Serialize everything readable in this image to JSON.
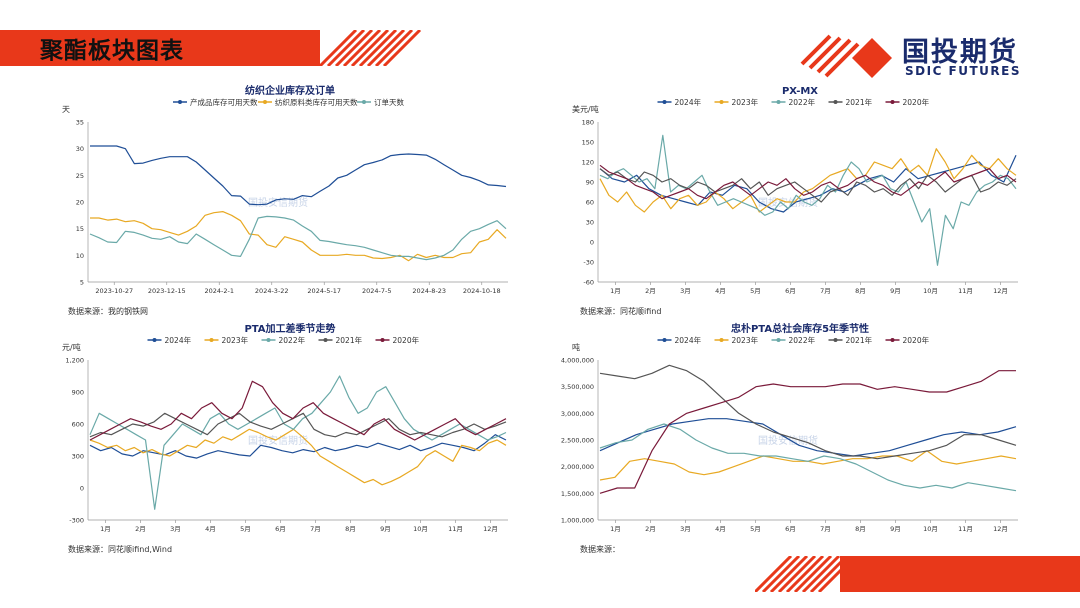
{
  "header": {
    "title": "聚酯板块图表"
  },
  "logo": {
    "cn": "国投期货",
    "en": "SDIC FUTURES",
    "watermark": "国投安信期货"
  },
  "colors": {
    "accent": "#e8381a",
    "brand": "#1a2b6c"
  },
  "sources": {
    "c1": "数据来源：我的钢铁网",
    "c2": "数据来源：同花顺ifind",
    "c3": "数据来源：同花顺ifind,Wind",
    "c4": "数据来源："
  },
  "chart_data": [
    {
      "id": "c1",
      "type": "line",
      "title": "纺织企业库存及订单",
      "ylabel": "天",
      "ylim": [
        5,
        35
      ],
      "yticks": [
        5,
        10,
        15,
        20,
        25,
        30,
        35
      ],
      "xticks": [
        "2023-10-27",
        "2023-12-15",
        "2024-2-1",
        "2024-3-22",
        "2024-5-17",
        "2024-7-5",
        "2024-8-23",
        "2024-10-18"
      ],
      "series": [
        {
          "name": "产成品库存可用天数",
          "color": "#1f4e96",
          "values": [
            30.5,
            30.5,
            30.5,
            30.5,
            30,
            27.2,
            27.3,
            27.8,
            28.2,
            28.5,
            28.5,
            28.5,
            27.5,
            26,
            24.5,
            23,
            21.2,
            21.1,
            19.6,
            19.5,
            19.6,
            20.4,
            20.6,
            20.5,
            21.2,
            21,
            22,
            23,
            24.5,
            25,
            26,
            27,
            27.4,
            27.9,
            28.7,
            28.9,
            29,
            28.9,
            28.8,
            28,
            27,
            26,
            25,
            24.6,
            24,
            23.2,
            23.1,
            22.9
          ]
        },
        {
          "name": "纺织原料类库存可用天数",
          "color": "#e8a923",
          "values": [
            17,
            17,
            16.6,
            16.8,
            16.3,
            16.5,
            16,
            15,
            14.8,
            14.3,
            13.8,
            14.5,
            15.5,
            17.5,
            18,
            18.2,
            17.5,
            16.5,
            14,
            13.8,
            12,
            11.5,
            13.5,
            13,
            12.5,
            11,
            10,
            10,
            10,
            10.2,
            10,
            10,
            9.5,
            9.4,
            9.6,
            10,
            9,
            10.2,
            9.6,
            10,
            9.6,
            9.6,
            10.3,
            10.5,
            12.5,
            13,
            14.8,
            13.2
          ]
        },
        {
          "name": "订单天数",
          "color": "#6aa9a8",
          "values": [
            14,
            13.3,
            12.5,
            12.4,
            14.5,
            14.3,
            13.8,
            13.2,
            13,
            13.5,
            12.5,
            12.2,
            14,
            13,
            12,
            11,
            10,
            9.8,
            13,
            17,
            17.3,
            17.2,
            17,
            16.6,
            15.5,
            14.5,
            12.8,
            12.6,
            12.3,
            12,
            11.8,
            11.5,
            11,
            10.5,
            10,
            9.8,
            9.8,
            9.5,
            9.2,
            9.5,
            10,
            11,
            13,
            14.5,
            15,
            15.8,
            16.5,
            15
          ]
        }
      ]
    },
    {
      "id": "c2",
      "type": "line",
      "title": "PX-MX",
      "ylabel": "美元/吨",
      "ylim": [
        -60,
        180
      ],
      "yticks": [
        -60,
        -30,
        0,
        30,
        60,
        90,
        120,
        150,
        180
      ],
      "xticks": [
        "1月",
        "2月",
        "3月",
        "4月",
        "5月",
        "6月",
        "7月",
        "8月",
        "9月",
        "10月",
        "11月",
        "12月"
      ],
      "series": [
        {
          "name": "2024年",
          "color": "#1f4e96",
          "values": [
            110,
            95,
            90,
            100,
            80,
            70,
            65,
            60,
            55,
            75,
            70,
            85,
            80,
            60,
            50,
            45,
            60,
            65,
            70,
            80,
            75,
            85,
            95,
            100,
            90,
            110,
            95,
            100,
            105,
            110,
            115,
            120,
            100,
            90,
            130
          ]
        },
        {
          "name": "2023年",
          "color": "#e8a923",
          "values": [
            95,
            70,
            60,
            75,
            55,
            45,
            60,
            70,
            50,
            65,
            70,
            55,
            60,
            75,
            65,
            50,
            60,
            70,
            45,
            55,
            65,
            60,
            60,
            75,
            80,
            90,
            100,
            105,
            110,
            95,
            100,
            120,
            115,
            110,
            125,
            105,
            115,
            100,
            140,
            120,
            95,
            110,
            130,
            115,
            110,
            125,
            110,
            100
          ]
        },
        {
          "name": "2022年",
          "color": "#6aa9a8",
          "values": [
            100,
            95,
            105,
            110,
            100,
            90,
            95,
            80,
            160,
            75,
            85,
            80,
            90,
            100,
            75,
            55,
            60,
            65,
            60,
            55,
            50,
            40,
            45,
            60,
            50,
            70,
            60,
            55,
            65,
            85,
            75,
            100,
            120,
            110,
            90,
            95,
            100,
            80,
            75,
            90,
            60,
            30,
            50,
            -35,
            40,
            20,
            60,
            55,
            75,
            85,
            90,
            100,
            95,
            80
          ]
        },
        {
          "name": "2021年",
          "color": "#555555",
          "values": [
            110,
            100,
            105,
            95,
            90,
            105,
            100,
            90,
            95,
            85,
            80,
            90,
            85,
            75,
            80,
            85,
            95,
            80,
            90,
            70,
            80,
            85,
            90,
            80,
            70,
            60,
            75,
            80,
            70,
            90,
            85,
            75,
            80,
            70,
            85,
            95,
            80,
            100,
            90,
            75,
            85,
            95,
            100,
            75,
            80,
            90,
            85,
            95
          ]
        },
        {
          "name": "2020年",
          "color": "#7a1a3a",
          "values": [
            115,
            105,
            100,
            95,
            85,
            80,
            75,
            65,
            70,
            75,
            80,
            70,
            65,
            75,
            85,
            90,
            80,
            70,
            80,
            90,
            85,
            95,
            80,
            70,
            75,
            85,
            90,
            80,
            85,
            95,
            100,
            90,
            85,
            75,
            70,
            80,
            90,
            85,
            95,
            105,
            90,
            95,
            100,
            105,
            110,
            95,
            100,
            90
          ]
        }
      ]
    },
    {
      "id": "c3",
      "type": "line",
      "title": "PTA加工差季节走势",
      "ylabel": "元/吨",
      "ylim": [
        -300,
        1200
      ],
      "yticks": [
        -300,
        0,
        300,
        600,
        900,
        1200
      ],
      "yticklabels": [
        "-300",
        "0",
        "300",
        "600",
        "900",
        "1,200"
      ],
      "xticks": [
        "1月",
        "2月",
        "3月",
        "4月",
        "5月",
        "6月",
        "7月",
        "8月",
        "9月",
        "10月",
        "11月",
        "12月"
      ],
      "series": [
        {
          "name": "2024年",
          "color": "#1f4e96",
          "values": [
            400,
            350,
            380,
            320,
            300,
            350,
            330,
            310,
            350,
            300,
            280,
            320,
            350,
            330,
            310,
            300,
            400,
            380,
            350,
            330,
            360,
            340,
            380,
            350,
            370,
            400,
            380,
            420,
            390,
            360,
            400,
            350,
            380,
            420,
            400,
            380,
            350,
            420,
            500,
            450
          ]
        },
        {
          "name": "2023年",
          "color": "#e8a923",
          "values": [
            450,
            420,
            380,
            400,
            350,
            380,
            330,
            360,
            320,
            300,
            350,
            400,
            380,
            450,
            420,
            480,
            450,
            500,
            550,
            520,
            480,
            450,
            500,
            550,
            480,
            400,
            300,
            250,
            200,
            150,
            100,
            50,
            80,
            30,
            60,
            100,
            150,
            200,
            300,
            350,
            300,
            250,
            400,
            380,
            350,
            420,
            450,
            400
          ]
        },
        {
          "name": "2022年",
          "color": "#6aa9a8",
          "values": [
            500,
            700,
            650,
            600,
            550,
            500,
            450,
            -200,
            400,
            500,
            600,
            550,
            500,
            650,
            700,
            600,
            550,
            600,
            650,
            700,
            750,
            600,
            550,
            650,
            700,
            800,
            900,
            1050,
            850,
            700,
            750,
            900,
            950,
            800,
            650,
            550,
            500,
            450,
            500,
            550,
            600,
            550,
            500,
            450,
            480,
            520
          ]
        },
        {
          "name": "2021年",
          "color": "#555555",
          "values": [
            480,
            520,
            500,
            550,
            600,
            580,
            620,
            700,
            650,
            600,
            550,
            500,
            600,
            650,
            700,
            620,
            580,
            550,
            600,
            650,
            700,
            550,
            500,
            480,
            520,
            500,
            550,
            600,
            650,
            550,
            500,
            520,
            500,
            480,
            520,
            550,
            600,
            550,
            580,
            620
          ]
        },
        {
          "name": "2020年",
          "color": "#7a1a3a",
          "values": [
            450,
            500,
            550,
            600,
            650,
            620,
            580,
            550,
            600,
            700,
            650,
            750,
            800,
            700,
            650,
            750,
            1000,
            950,
            800,
            700,
            650,
            750,
            800,
            700,
            650,
            600,
            550,
            500,
            600,
            650,
            550,
            500,
            450,
            500,
            550,
            600,
            650,
            550,
            500,
            550,
            600,
            650
          ]
        }
      ]
    },
    {
      "id": "c4",
      "type": "line",
      "title": "忠朴PTA总社会库存5年季节性",
      "ylabel": "吨",
      "ylim": [
        1000000,
        4000000
      ],
      "yticks": [
        1000000,
        1500000,
        2000000,
        2500000,
        3000000,
        3500000,
        4000000
      ],
      "yticklabels": [
        "1,000,000",
        "1,500,000",
        "2,000,000",
        "2,500,000",
        "3,000,000",
        "3,500,000",
        "4,000,000"
      ],
      "xticks": [
        "1月",
        "2月",
        "3月",
        "4月",
        "5月",
        "6月",
        "7月",
        "8月",
        "9月",
        "10月",
        "11月",
        "12月"
      ],
      "series": [
        {
          "name": "2024年",
          "color": "#1f4e96",
          "values": [
            2300000,
            2450000,
            2600000,
            2700000,
            2800000,
            2850000,
            2900000,
            2900000,
            2850000,
            2800000,
            2600000,
            2400000,
            2300000,
            2250000,
            2200000,
            2250000,
            2300000,
            2400000,
            2500000,
            2600000,
            2650000,
            2600000,
            2650000,
            2750000
          ]
        },
        {
          "name": "2023年",
          "color": "#e8a923",
          "values": [
            1750000,
            1800000,
            2100000,
            2150000,
            2100000,
            2050000,
            1900000,
            1850000,
            1900000,
            2000000,
            2100000,
            2200000,
            2150000,
            2100000,
            2100000,
            2050000,
            2100000,
            2150000,
            2150000,
            2200000,
            2200000,
            2100000,
            2300000,
            2100000,
            2050000,
            2100000,
            2150000,
            2200000,
            2150000
          ]
        },
        {
          "name": "2022年",
          "color": "#6aa9a8",
          "values": [
            2350000,
            2450000,
            2500000,
            2700000,
            2800000,
            2700000,
            2500000,
            2350000,
            2250000,
            2250000,
            2200000,
            2200000,
            2150000,
            2100000,
            2200000,
            2150000,
            2050000,
            1900000,
            1750000,
            1650000,
            1600000,
            1650000,
            1600000,
            1700000,
            1650000,
            1600000,
            1550000
          ]
        },
        {
          "name": "2021年",
          "color": "#555555",
          "values": [
            3750000,
            3700000,
            3650000,
            3750000,
            3900000,
            3800000,
            3600000,
            3300000,
            3000000,
            2800000,
            2650000,
            2550000,
            2450000,
            2300000,
            2200000,
            2200000,
            2150000,
            2200000,
            2250000,
            2300000,
            2400000,
            2600000,
            2600000,
            2500000,
            2400000
          ]
        },
        {
          "name": "2020年",
          "color": "#7a1a3a",
          "values": [
            1500000,
            1600000,
            1600000,
            2300000,
            2800000,
            3000000,
            3100000,
            3200000,
            3300000,
            3500000,
            3550000,
            3500000,
            3500000,
            3500000,
            3550000,
            3550000,
            3450000,
            3500000,
            3450000,
            3400000,
            3400000,
            3500000,
            3600000,
            3800000,
            3800000
          ]
        }
      ]
    }
  ]
}
